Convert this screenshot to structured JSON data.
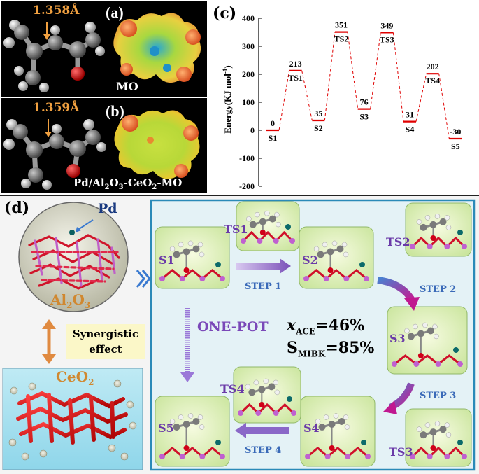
{
  "panel_a": {
    "label": "(a)",
    "bond": "1.358Å",
    "caption": "MO"
  },
  "panel_b": {
    "label": "(b)",
    "bond": "1.359Å",
    "caption_main": "Pd/Al",
    "caption_sub1": "2",
    "caption_mid": "O",
    "caption_sub2": "3",
    "caption_end": "-CeO",
    "caption_sub3": "2",
    "caption_tail": "-MO"
  },
  "panel_c": {
    "label": "(c)"
  },
  "chart_data": {
    "type": "line",
    "ylabel": "Energy(KJ mol",
    "ylabel_sup": "-1",
    "ylabel_close": ")",
    "ylim": [
      -200,
      400
    ],
    "yticks": [
      -200,
      -100,
      0,
      100,
      200,
      300,
      400
    ],
    "states": [
      {
        "name": "S1",
        "value": 0,
        "value_label": "0"
      },
      {
        "name": "TS1",
        "value": 213,
        "value_label": "213"
      },
      {
        "name": "S2",
        "value": 35,
        "value_label": "35"
      },
      {
        "name": "TS2",
        "value": 351,
        "value_label": "351"
      },
      {
        "name": "S3",
        "value": 76,
        "value_label": "76"
      },
      {
        "name": "TS3",
        "value": 349,
        "value_label": "349"
      },
      {
        "name": "S4",
        "value": 31,
        "value_label": "31"
      },
      {
        "name": "TS4",
        "value": 202,
        "value_label": "202"
      },
      {
        "name": "S5",
        "value": -30,
        "value_label": "-30"
      }
    ],
    "colors": {
      "levels": "#e00000",
      "connectors": "#e00000"
    }
  },
  "panel_d": {
    "label": "(d)",
    "pd": "Pd",
    "al2o3_main": "Al",
    "al2o3_sub1": "2",
    "al2o3_mid": "O",
    "al2o3_sub2": "3",
    "synergy_line1": "Synergistic",
    "synergy_line2": "effect",
    "ceo2_main": "CeO",
    "ceo2_sub": "2",
    "one_pot": "ONE-POT",
    "x_ace_var": "x",
    "x_ace_sub": "ACE",
    "x_ace_val": "=46%",
    "s_mibk_var": "S",
    "s_mibk_sub": "MIBK",
    "s_mibk_val": "=85%",
    "states": {
      "s1": "S1",
      "s2": "S2",
      "s3": "S3",
      "s4": "S4",
      "s5": "S5",
      "ts1": "TS1",
      "ts2": "TS2",
      "ts3": "TS3",
      "ts4": "TS4"
    },
    "steps": {
      "step1": "STEP 1",
      "step2": "STEP 2",
      "step3": "STEP 3",
      "step4": "STEP 4"
    }
  }
}
